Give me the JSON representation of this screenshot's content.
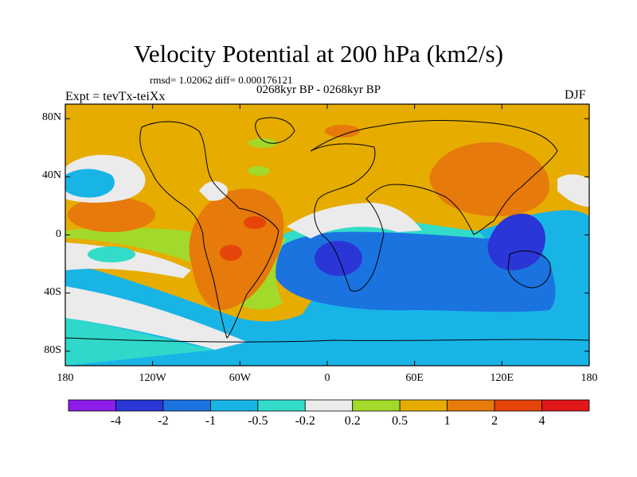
{
  "title": "Velocity Potential at 200 hPa (km2/s)",
  "stats_line": "rmsd= 1.02062 diff= 0.000176121",
  "period_line": "0268kyr BP - 0268kyr BP",
  "experiment_label": "Expt = tevTx-teiXx",
  "season_label": "DJF",
  "map": {
    "type": "filled-contour",
    "projection": "cylindrical-equidistant",
    "lon_range": [
      -180,
      180
    ],
    "lat_range": [
      -90,
      90
    ],
    "x_ticks": [
      {
        "value": -180,
        "label": "180"
      },
      {
        "value": -120,
        "label": "120W"
      },
      {
        "value": -60,
        "label": "60W"
      },
      {
        "value": 0,
        "label": "0"
      },
      {
        "value": 60,
        "label": "60E"
      },
      {
        "value": 120,
        "label": "120E"
      },
      {
        "value": 180,
        "label": "180"
      }
    ],
    "y_ticks": [
      {
        "value": 80,
        "label": "80N"
      },
      {
        "value": 40,
        "label": "40N"
      },
      {
        "value": 0,
        "label": "0"
      },
      {
        "value": -40,
        "label": "40S"
      },
      {
        "value": -80,
        "label": "80S"
      }
    ]
  },
  "colorbar": {
    "colors": [
      "#8c1ce8",
      "#2a36d6",
      "#1b73e0",
      "#19b4e6",
      "#33dcc8",
      "#ebebeb",
      "#a3d92a",
      "#e6ac00",
      "#e67a0a",
      "#e6440a",
      "#e01818"
    ],
    "labels": [
      "-4",
      "-2",
      "-1",
      "-0.5",
      "-0.2",
      "0.2",
      "0.5",
      "1",
      "2",
      "4"
    ]
  }
}
